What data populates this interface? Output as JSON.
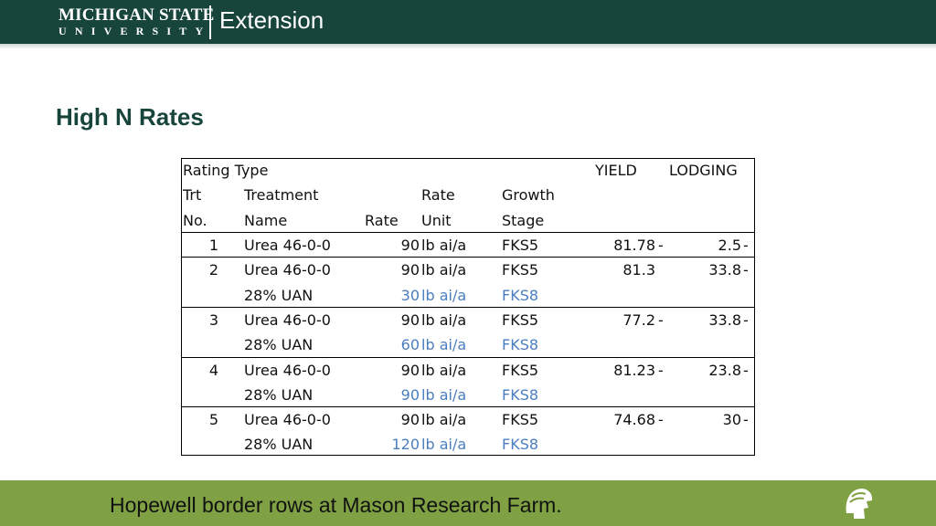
{
  "header": {
    "logo_line1": "MICHIGAN STATE",
    "logo_line2": "UNIVERSITY",
    "logo_extension": "Extension",
    "bg_color": "#18453b"
  },
  "title": "High N Rates",
  "table": {
    "header_rows": [
      {
        "c0": "Rating Type",
        "c1": "",
        "c2": "",
        "c3": "",
        "c4": "",
        "c5": "YIELD",
        "c6": "LODGING"
      },
      {
        "c0": "Trt",
        "c1": "Treatment",
        "c2": "",
        "c3": "Rate",
        "c4": "Growth",
        "c5": "",
        "c6": ""
      },
      {
        "c0": "No.",
        "c1": "Name",
        "c2": "Rate",
        "c3": "Unit",
        "c4": "Stage",
        "c5": "",
        "c6": ""
      }
    ],
    "rows": [
      {
        "trt": "1",
        "name": "Urea 46-0-0",
        "rate": "90",
        "unit": "lb ai/a",
        "stage": "FKS5",
        "yield": "81.78",
        "ydash": "-",
        "lodging": "2.5",
        "ldash": "-",
        "sub": null
      },
      {
        "trt": "2",
        "name": "Urea 46-0-0",
        "rate": "90",
        "unit": "lb ai/a",
        "stage": "FKS5",
        "yield": "81.3",
        "ydash": "",
        "lodging": "33.8",
        "ldash": "-",
        "sub": {
          "name": "28% UAN",
          "rate": "30",
          "unit": "lb ai/a",
          "stage": "FKS8"
        }
      },
      {
        "trt": "3",
        "name": "Urea 46-0-0",
        "rate": "90",
        "unit": "lb ai/a",
        "stage": "FKS5",
        "yield": "77.2",
        "ydash": "-",
        "lodging": "33.8",
        "ldash": "-",
        "sub": {
          "name": "28% UAN",
          "rate": "60",
          "unit": "lb ai/a",
          "stage": "FKS8"
        }
      },
      {
        "trt": "4",
        "name": "Urea 46-0-0",
        "rate": "90",
        "unit": "lb ai/a",
        "stage": "FKS5",
        "yield": "81.23",
        "ydash": "-",
        "lodging": "23.8",
        "ldash": "-",
        "sub": {
          "name": "28% UAN",
          "rate": "90",
          "unit": "lb ai/a",
          "stage": "FKS8"
        }
      },
      {
        "trt": "5",
        "name": "Urea 46-0-0",
        "rate": "90",
        "unit": "lb ai/a",
        "stage": "FKS5",
        "yield": "74.68",
        "ydash": "-",
        "lodging": "30",
        "ldash": "-",
        "sub": {
          "name": "28% UAN",
          "rate": "120",
          "unit": "lb ai/a",
          "stage": "FKS8"
        }
      }
    ]
  },
  "footer": {
    "text": "Hopewell border rows at Mason Research Farm.",
    "icon": "spartan-helmet-icon",
    "bg_color": "#7fa143"
  }
}
